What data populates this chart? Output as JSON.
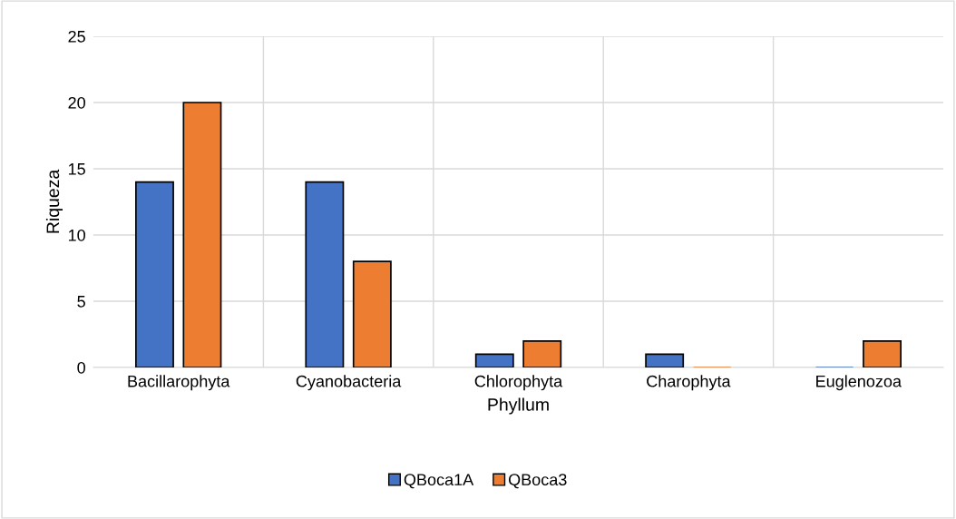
{
  "chart_data": {
    "type": "bar",
    "xlabel": "Phyllum",
    "ylabel": "Riqueza",
    "categories": [
      "Bacillarophyta",
      "Cyanobacteria",
      "Chlorophyta",
      "Charophyta",
      "Euglenozoa"
    ],
    "series": [
      {
        "name": "QBoca1A",
        "color": "#4472c4",
        "values": [
          14,
          14,
          1,
          1,
          0
        ]
      },
      {
        "name": "QBoca3",
        "color": "#ed7d31",
        "values": [
          20,
          8,
          2,
          0,
          2
        ]
      }
    ],
    "ylim": [
      0,
      25
    ],
    "yticks": [
      0,
      5,
      10,
      15,
      20,
      25
    ],
    "grid": true,
    "legend": "bottom"
  }
}
